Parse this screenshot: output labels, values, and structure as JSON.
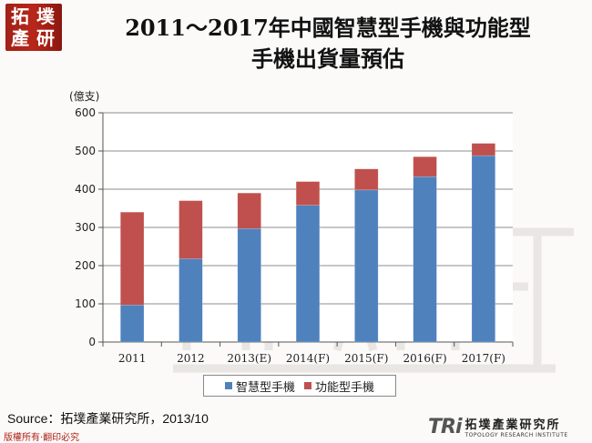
{
  "logo": {
    "chars": [
      "拓",
      "墣",
      "產",
      "研"
    ]
  },
  "title": {
    "line1": "2011～2017年中國智慧型手機與功能型",
    "line2": "手機出貨量預估"
  },
  "chart_data": {
    "type": "bar",
    "stacked": true,
    "categories": [
      "2011",
      "2012",
      "2013(E)",
      "2014(F)",
      "2015(F)",
      "2016(F)",
      "2017(F)"
    ],
    "series": [
      {
        "name": "智慧型手機",
        "color": "#4f81bd",
        "values": [
          97,
          218,
          297,
          358,
          398,
          433,
          488
        ]
      },
      {
        "name": "功能型手機",
        "color": "#c0504d",
        "values": [
          243,
          152,
          93,
          62,
          55,
          52,
          32
        ]
      }
    ],
    "ylabel": "(億支)",
    "ylim": [
      0,
      600
    ],
    "yticks": [
      0,
      100,
      200,
      300,
      400,
      500,
      600
    ],
    "grid": true,
    "legend_position": "bottom"
  },
  "source": "Source：拓墣產業研究所，2013/10",
  "copyright": "版權所有‧翻印必究",
  "footer_logo": {
    "mark": "TRi",
    "zh": "拓墣產業研究所",
    "en": "TOPOLOGY RESEARCH INSTITUTE"
  }
}
